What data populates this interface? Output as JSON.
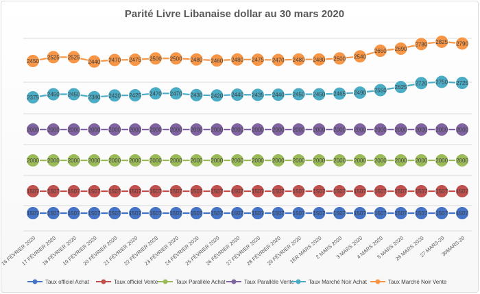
{
  "chart_data": {
    "type": "line",
    "title": "Parité Livre Libanaise dollar au 30 mars 2020",
    "xlabel": "",
    "ylabel": "",
    "grid": true,
    "legend_position": "bottom",
    "categories": [
      "16 FÉVRIER 2020",
      "17 FÉVRIER 2020",
      "18 FÉVRIER 2020",
      "19 FÉVRIER 2020",
      "20 FÉVRIER 2020",
      "21 FÉVRIER 2020",
      "22 FÉVRIER 2020",
      "23 FÉVRIER 2020",
      "24 FÉVRIER 2020",
      "25 FÉVRIER 2020",
      "26 FÉVRIER 2020",
      "27 FÉVRIER 2020",
      "28 FÉVRIER 2020",
      "29 FÉVRIER 2020",
      "1ER MARS 2020",
      "2 MARS 2020",
      "3 MARS 2020",
      "4 MARS 2020",
      "5 MARS 2020",
      "26 MARS 2020",
      "27 MARS-20",
      "30MARS-20"
    ],
    "series": [
      {
        "name": "Taux officiel Achat",
        "color": "#4472c4",
        "values": [
          1507,
          1507,
          1507,
          1507,
          1507,
          1507,
          1507,
          1507,
          1507,
          1507,
          1507,
          1507,
          1507,
          1507,
          1507,
          1507,
          1507,
          1507,
          1507,
          1507,
          1507,
          1507
        ]
      },
      {
        "name": "Taux officiel Vente",
        "color": "#c0504d",
        "values": [
          1507,
          1507,
          1507,
          1507,
          1507,
          1507,
          1507,
          1507,
          1507,
          1507,
          1507,
          1507,
          1507,
          1507,
          1507,
          1507,
          1507,
          1507,
          1507,
          1507,
          1507,
          1507
        ]
      },
      {
        "name": "Taux Parallèle Achat",
        "color": "#9bbb59",
        "values": [
          2000,
          2000,
          2000,
          2000,
          2000,
          2000,
          2000,
          2000,
          2000,
          2000,
          2000,
          2000,
          2000,
          2000,
          2000,
          2000,
          2000,
          2000,
          2000,
          2000,
          2000,
          2000
        ]
      },
      {
        "name": "Taux Parallèle Vente",
        "color": "#8064a2",
        "values": [
          2000,
          2000,
          2000,
          2000,
          2000,
          2000,
          2000,
          2000,
          2000,
          2000,
          2000,
          2000,
          2000,
          2000,
          2000,
          2000,
          2000,
          2000,
          2000,
          2000,
          2000,
          2000
        ]
      },
      {
        "name": "Taux Marché Noir Achat",
        "color": "#4bacc6",
        "values": [
          2375,
          2450,
          2450,
          2380,
          2420,
          2425,
          2470,
          2470,
          2430,
          2420,
          2440,
          2435,
          2440,
          2450,
          2450,
          2465,
          2490,
          2550,
          2625,
          2720,
          2750,
          2725
        ]
      },
      {
        "name": "Taux Marché Noir Vente",
        "color": "#f79646",
        "values": [
          2450,
          2525,
          2525,
          2440,
          2470,
          2475,
          2500,
          2500,
          2480,
          2460,
          2480,
          2475,
          2470,
          2480,
          2480,
          2500,
          2540,
          2650,
          2690,
          2780,
          2825,
          2790
        ]
      }
    ]
  }
}
